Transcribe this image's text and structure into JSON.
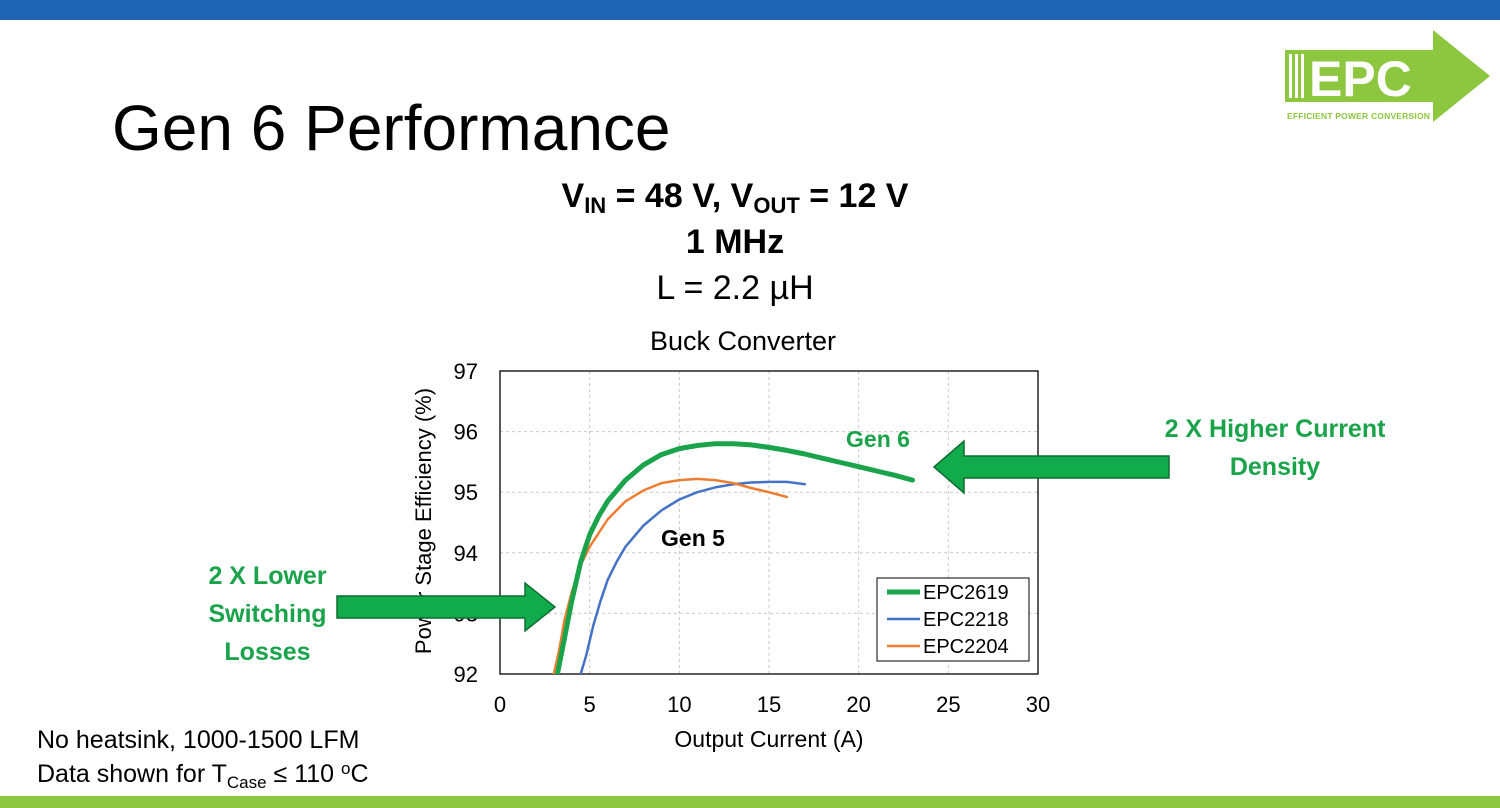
{
  "slide": {
    "title": "Gen 6 Performance",
    "conditions": {
      "vin_symbol": "V",
      "vin_sub": "IN",
      "vin_value": " = 48 V, ",
      "vout_symbol": "V",
      "vout_sub": "OUT",
      "vout_value": " = 12 V",
      "frequency": "1 MHz",
      "inductance": "L = 2.2 µH"
    },
    "logo": {
      "text": "EPC",
      "tagline": "EFFICIENT POWER CONVERSION"
    },
    "notes": {
      "line1": "No heatsink, 1000-1500 LFM",
      "line2_prefix": "Data shown for T",
      "line2_sub": "Case",
      "line2_mid": " ≤ 110 ",
      "line2_sup": "o",
      "line2_suffix": "C"
    },
    "annotations": {
      "right": [
        "2 X Higher Current",
        "Density"
      ],
      "left": [
        "2 X Lower",
        "Switching",
        "Losses"
      ]
    },
    "colors": {
      "top_bar": "#1f63b5",
      "bottom_bar": "#8dc63f",
      "annotation_green": "#1aa34a",
      "arrow_green": "#12ab4b"
    }
  },
  "chart_data": {
    "type": "line",
    "title": "Buck Converter",
    "xlabel": "Output Current (A)",
    "ylabel": "Power Stage Efficiency (%)",
    "xlim": [
      0,
      30
    ],
    "ylim": [
      92,
      97
    ],
    "xticks": [
      0,
      5,
      10,
      15,
      20,
      25,
      30
    ],
    "yticks": [
      92,
      93,
      94,
      95,
      96,
      97
    ],
    "grid": true,
    "legend": "bottom-right",
    "labels": {
      "gen6": "Gen 6",
      "gen5": "Gen 5"
    },
    "series": [
      {
        "name": "EPC2619",
        "color": "#1aa34a",
        "x": [
          3.2,
          3.6,
          4.0,
          4.5,
          5.0,
          5.5,
          6.0,
          7.0,
          8.0,
          9.0,
          10.0,
          11.0,
          12.0,
          13.0,
          14.0,
          15.0,
          16.0,
          17.0,
          18.0,
          19.0,
          20.0,
          21.0,
          22.0,
          23.0
        ],
        "y": [
          92.0,
          92.6,
          93.2,
          93.85,
          94.3,
          94.6,
          94.85,
          95.2,
          95.45,
          95.62,
          95.72,
          95.77,
          95.8,
          95.8,
          95.78,
          95.74,
          95.69,
          95.63,
          95.56,
          95.49,
          95.42,
          95.35,
          95.28,
          95.2
        ]
      },
      {
        "name": "EPC2218",
        "color": "#4472c4",
        "x": [
          4.5,
          4.8,
          5.2,
          5.6,
          6.0,
          6.5,
          7.0,
          8.0,
          9.0,
          10.0,
          11.0,
          12.0,
          13.0,
          14.0,
          15.0,
          16.0,
          17.0
        ],
        "y": [
          92.0,
          92.3,
          92.8,
          93.2,
          93.55,
          93.85,
          94.1,
          94.45,
          94.7,
          94.88,
          95.0,
          95.08,
          95.13,
          95.16,
          95.17,
          95.17,
          95.13
        ]
      },
      {
        "name": "EPC2204",
        "color": "#ed7d31",
        "x": [
          3.0,
          3.3,
          3.6,
          4.0,
          4.5,
          5.0,
          6.0,
          7.0,
          8.0,
          9.0,
          10.0,
          11.0,
          12.0,
          13.0,
          14.0,
          15.0,
          16.0
        ],
        "y": [
          92.0,
          92.4,
          92.9,
          93.35,
          93.8,
          94.1,
          94.55,
          94.85,
          95.03,
          95.15,
          95.2,
          95.22,
          95.2,
          95.15,
          95.07,
          95.0,
          94.92
        ]
      }
    ]
  }
}
